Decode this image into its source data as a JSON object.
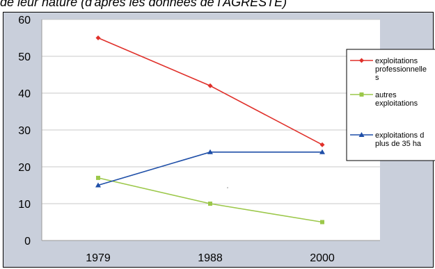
{
  "caption": "de leur nature (d'après les données de l'AGRESTE)",
  "chart_data": {
    "type": "line",
    "categories": [
      "1979",
      "1988",
      "2000"
    ],
    "yticks": [
      "0",
      "10",
      "20",
      "30",
      "40",
      "50",
      "60"
    ],
    "ylim": [
      0,
      60
    ],
    "grid": "horizontal",
    "legend_position": "right",
    "series": [
      {
        "legend_lines": [
          "exploitations",
          "professionnelle",
          "s"
        ],
        "color": "#e0302a",
        "marker": "diamond",
        "values": [
          55,
          42,
          26
        ]
      },
      {
        "legend_lines": [
          "autres",
          "exploitations"
        ],
        "color": "#9cc84a",
        "marker": "square",
        "values": [
          17,
          10,
          5
        ]
      },
      {
        "legend_lines": [
          "exploitations d",
          "plus de 35 ha"
        ],
        "color": "#1f4fa8",
        "marker": "triangle",
        "values": [
          15,
          24,
          24
        ]
      }
    ]
  },
  "colors": {
    "frame_background": "#c9cfdb",
    "plot_background": "#ffffff",
    "grid": "#c8c8c8"
  }
}
